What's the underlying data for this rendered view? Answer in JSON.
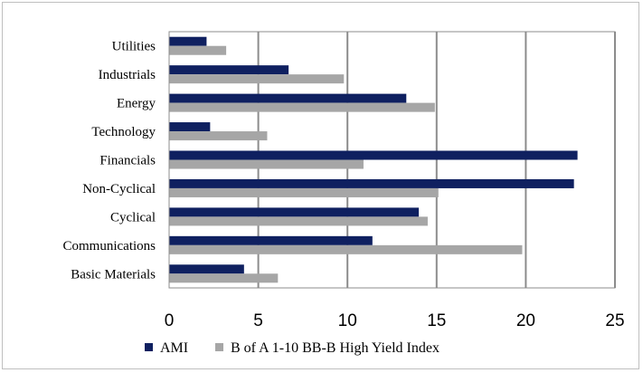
{
  "chart_data": {
    "type": "bar",
    "orientation": "horizontal",
    "categories": [
      "Utilities",
      "Industrials",
      "Energy",
      "Technology",
      "Financials",
      "Non-Cyclical",
      "Cyclical",
      "Communications",
      "Basic Materials"
    ],
    "series": [
      {
        "name": "AMI",
        "color": "#0f2060",
        "values": [
          2.1,
          6.7,
          13.3,
          2.3,
          22.9,
          22.7,
          14.0,
          11.4,
          4.2
        ]
      },
      {
        "name": "B of A 1-10 BB-B High Yield Index",
        "color": "#a6a6a6",
        "values": [
          3.2,
          9.8,
          14.9,
          5.5,
          10.9,
          15.1,
          14.5,
          19.8,
          6.1
        ]
      }
    ],
    "xlim": [
      0,
      25
    ],
    "xticks": [
      0,
      5,
      10,
      15,
      20,
      25
    ],
    "grid": true,
    "legend_position": "bottom",
    "title": "",
    "xlabel": "",
    "ylabel": ""
  }
}
